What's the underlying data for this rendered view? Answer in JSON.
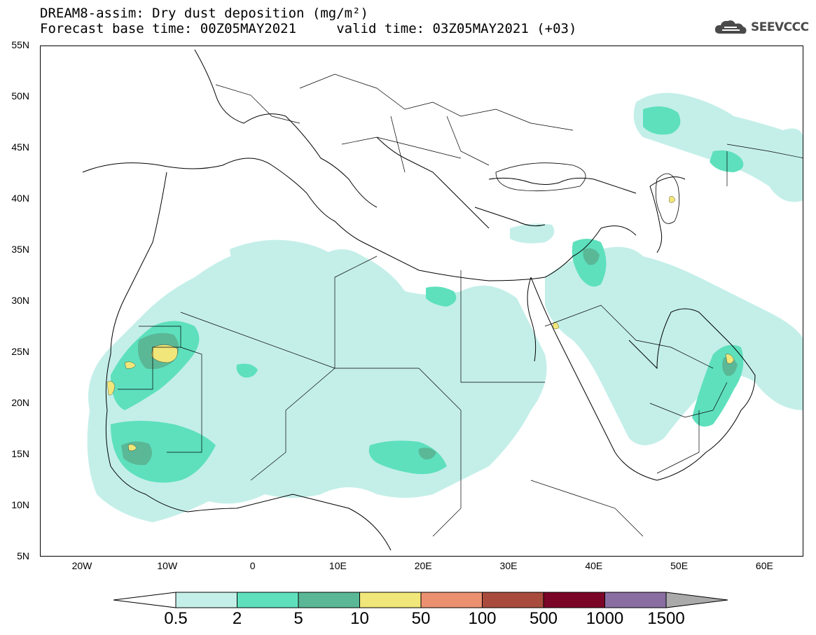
{
  "title": {
    "line1": "DREAM8-assim: Dry dust deposition (mg/m²)",
    "line2": "Forecast base time: 00Z05MAY2021     valid time: 03Z05MAY2021 (+03)"
  },
  "logo": {
    "text": "SEEVCCC",
    "icon": "cloud-icon"
  },
  "axes": {
    "lat_labels": [
      "55N",
      "50N",
      "45N",
      "40N",
      "35N",
      "30N",
      "25N",
      "20N",
      "15N",
      "10N",
      "5N"
    ],
    "lon_labels": [
      "20W",
      "10W",
      "0",
      "10E",
      "20E",
      "30E",
      "40E",
      "50E",
      "60E"
    ]
  },
  "colorbar": {
    "labels": [
      "0.5",
      "2",
      "5",
      "10",
      "50",
      "100",
      "500",
      "1000",
      "1500"
    ],
    "colors": [
      "#c4efe9",
      "#5ee0bd",
      "#5ab897",
      "#f1e67a",
      "#eb9170",
      "#a84b3d",
      "#7a0527",
      "#8a6ea2",
      "#aaaaaa"
    ]
  }
}
